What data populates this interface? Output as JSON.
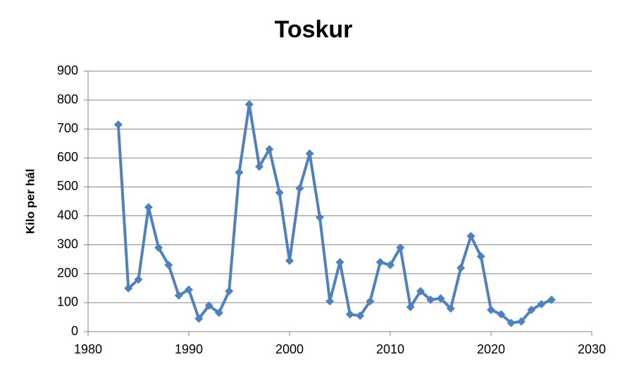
{
  "chart_data": {
    "type": "line",
    "title": "Toskur",
    "y_label": "Kilo per hál",
    "x": [
      1983,
      1984,
      1985,
      1986,
      1987,
      1988,
      1989,
      1990,
      1991,
      1992,
      1993,
      1994,
      1995,
      1996,
      1997,
      1998,
      1999,
      2000,
      2001,
      2002,
      2003,
      2004,
      2005,
      2006,
      2007,
      2008,
      2009,
      2010,
      2011,
      2012,
      2013,
      2014,
      2015,
      2016,
      2017,
      2018,
      2019,
      2020,
      2021,
      2022,
      2023,
      2024,
      2025,
      2026
    ],
    "series": [
      {
        "name": "Toskur",
        "color": "#4f81bd",
        "values": [
          715,
          150,
          180,
          430,
          290,
          230,
          125,
          145,
          45,
          90,
          65,
          140,
          550,
          785,
          570,
          630,
          480,
          245,
          495,
          615,
          395,
          105,
          240,
          60,
          55,
          105,
          240,
          230,
          290,
          85,
          140,
          110,
          115,
          80,
          220,
          330,
          260,
          75,
          60,
          30,
          35,
          75,
          95,
          110
        ]
      }
    ],
    "xlim": [
      1980,
      2030
    ],
    "xticks": [
      1980,
      1990,
      2000,
      2010,
      2020,
      2030
    ],
    "ylim": [
      0,
      900
    ],
    "yticks": [
      0,
      100,
      200,
      300,
      400,
      500,
      600,
      700,
      800,
      900
    ],
    "grid": true
  }
}
